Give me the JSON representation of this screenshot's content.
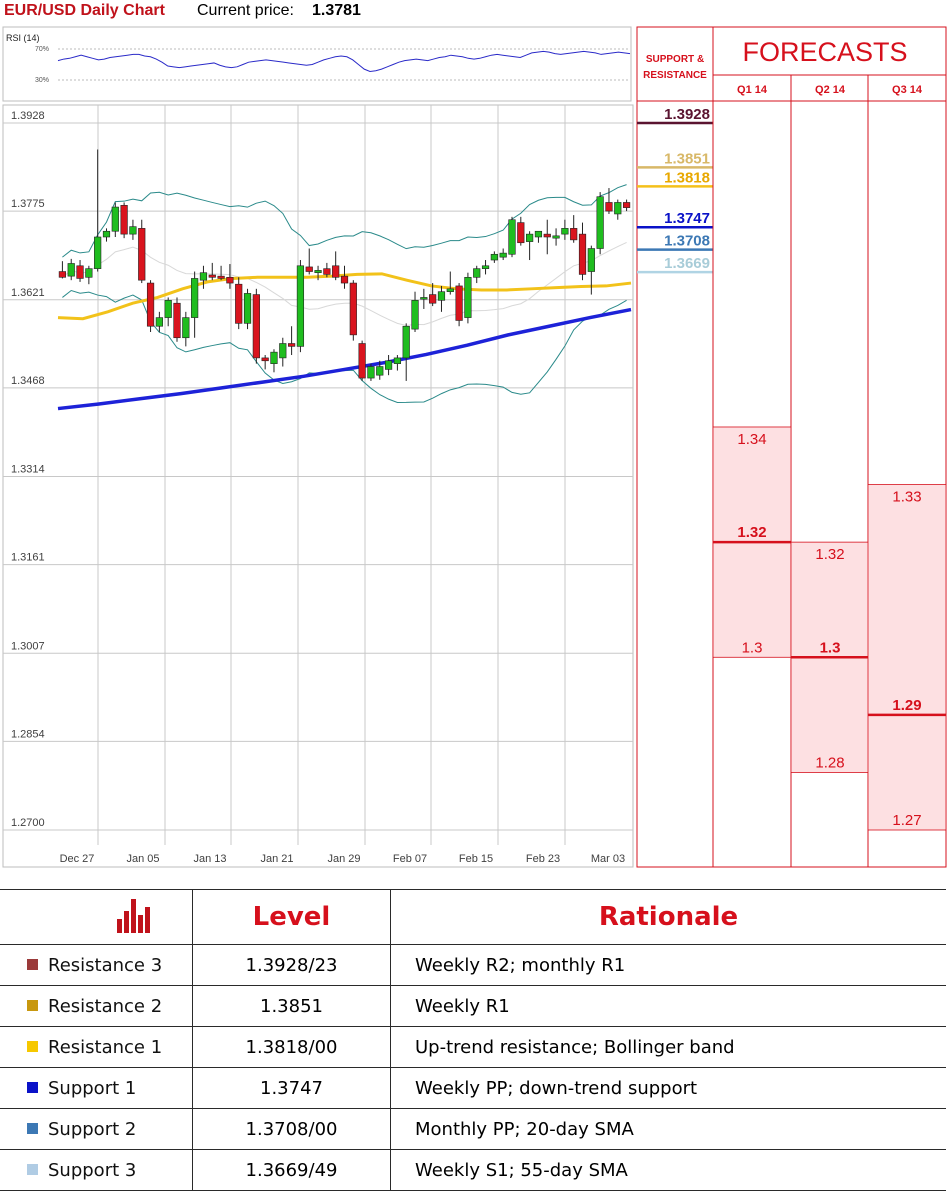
{
  "header": {
    "title": "EUR/USD Daily Chart",
    "current_price_label": "Current price:",
    "current_price": "1.3781"
  },
  "rsi": {
    "label": "RSI (14)",
    "levels": [
      "70%",
      "30%"
    ],
    "values": [
      55,
      57,
      58,
      60,
      62,
      60,
      58,
      56,
      57,
      59,
      60,
      61,
      62,
      63,
      63,
      61,
      60,
      57,
      53,
      48,
      47,
      46,
      47,
      48,
      49,
      50,
      51,
      52,
      49,
      47,
      46,
      47,
      50,
      53,
      54,
      55,
      56,
      55,
      54,
      53,
      52,
      51,
      50,
      49,
      50,
      53,
      56,
      58,
      60,
      61,
      60,
      56,
      50,
      44,
      41,
      42,
      44,
      47,
      50,
      53,
      55,
      56,
      57,
      56,
      55,
      57,
      59,
      60,
      62,
      61,
      60,
      58,
      57,
      58,
      60,
      62,
      63,
      62,
      61,
      60,
      59,
      62,
      65,
      66,
      67,
      66,
      64,
      63,
      64,
      65,
      66,
      67,
      66,
      65,
      63,
      64,
      65,
      66,
      65,
      64
    ]
  },
  "chart_data": {
    "type": "candlestick",
    "title": "EUR/USD Daily Chart",
    "y_tick_labels": [
      "1.3928",
      "1.3775",
      "1.3621",
      "1.3468",
      "1.3314",
      "1.3161",
      "1.3007",
      "1.2854",
      "1.2700"
    ],
    "ylim": [
      1.27,
      1.3928
    ],
    "x_tick_labels": [
      "Dec 27",
      "Jan 05",
      "Jan 13",
      "Jan 21",
      "Jan 29",
      "Feb 07",
      "Feb 15",
      "Feb 23",
      "Mar 03"
    ],
    "grid": true,
    "colors": {
      "up": "#1fbd1f",
      "down": "#d9141e",
      "sma55": "#f2c21a",
      "sma200": "#1d22d8",
      "bollinger": "#2a8a8a",
      "sma20": "#d8d8d8"
    },
    "candles": [
      {
        "o": 1.367,
        "h": 1.3688,
        "l": 1.3658,
        "c": 1.366
      },
      {
        "o": 1.3662,
        "h": 1.3692,
        "l": 1.3655,
        "c": 1.3684
      },
      {
        "o": 1.368,
        "h": 1.369,
        "l": 1.3652,
        "c": 1.3658
      },
      {
        "o": 1.366,
        "h": 1.368,
        "l": 1.3648,
        "c": 1.3675
      },
      {
        "o": 1.3675,
        "h": 1.3882,
        "l": 1.367,
        "c": 1.373
      },
      {
        "o": 1.373,
        "h": 1.3745,
        "l": 1.3722,
        "c": 1.374
      },
      {
        "o": 1.374,
        "h": 1.379,
        "l": 1.373,
        "c": 1.3782
      },
      {
        "o": 1.3785,
        "h": 1.379,
        "l": 1.3728,
        "c": 1.3735
      },
      {
        "o": 1.3735,
        "h": 1.376,
        "l": 1.3725,
        "c": 1.3748
      },
      {
        "o": 1.3745,
        "h": 1.376,
        "l": 1.365,
        "c": 1.3655
      },
      {
        "o": 1.365,
        "h": 1.3655,
        "l": 1.3565,
        "c": 1.3575
      },
      {
        "o": 1.3575,
        "h": 1.36,
        "l": 1.3565,
        "c": 1.359
      },
      {
        "o": 1.359,
        "h": 1.3625,
        "l": 1.3575,
        "c": 1.362
      },
      {
        "o": 1.3615,
        "h": 1.3625,
        "l": 1.3548,
        "c": 1.3555
      },
      {
        "o": 1.3555,
        "h": 1.36,
        "l": 1.354,
        "c": 1.359
      },
      {
        "o": 1.359,
        "h": 1.367,
        "l": 1.3555,
        "c": 1.3658
      },
      {
        "o": 1.3655,
        "h": 1.368,
        "l": 1.364,
        "c": 1.3668
      },
      {
        "o": 1.3664,
        "h": 1.3685,
        "l": 1.3655,
        "c": 1.366
      },
      {
        "o": 1.3662,
        "h": 1.368,
        "l": 1.3655,
        "c": 1.3658
      },
      {
        "o": 1.366,
        "h": 1.3683,
        "l": 1.364,
        "c": 1.365
      },
      {
        "o": 1.3648,
        "h": 1.366,
        "l": 1.357,
        "c": 1.358
      },
      {
        "o": 1.358,
        "h": 1.364,
        "l": 1.357,
        "c": 1.3632
      },
      {
        "o": 1.363,
        "h": 1.364,
        "l": 1.351,
        "c": 1.352
      },
      {
        "o": 1.352,
        "h": 1.3525,
        "l": 1.35,
        "c": 1.3515
      },
      {
        "o": 1.351,
        "h": 1.3535,
        "l": 1.3495,
        "c": 1.353
      },
      {
        "o": 1.352,
        "h": 1.3555,
        "l": 1.3505,
        "c": 1.3545
      },
      {
        "o": 1.3545,
        "h": 1.3575,
        "l": 1.3525,
        "c": 1.354
      },
      {
        "o": 1.354,
        "h": 1.369,
        "l": 1.353,
        "c": 1.368
      },
      {
        "o": 1.3678,
        "h": 1.371,
        "l": 1.3665,
        "c": 1.367
      },
      {
        "o": 1.3668,
        "h": 1.368,
        "l": 1.3655,
        "c": 1.3672
      },
      {
        "o": 1.3675,
        "h": 1.3685,
        "l": 1.366,
        "c": 1.3665
      },
      {
        "o": 1.368,
        "h": 1.3705,
        "l": 1.3655,
        "c": 1.366
      },
      {
        "o": 1.3662,
        "h": 1.368,
        "l": 1.364,
        "c": 1.365
      },
      {
        "o": 1.365,
        "h": 1.3655,
        "l": 1.355,
        "c": 1.356
      },
      {
        "o": 1.3545,
        "h": 1.355,
        "l": 1.348,
        "c": 1.3485
      },
      {
        "o": 1.3485,
        "h": 1.351,
        "l": 1.348,
        "c": 1.3505
      },
      {
        "o": 1.349,
        "h": 1.3515,
        "l": 1.3482,
        "c": 1.3505
      },
      {
        "o": 1.35,
        "h": 1.3525,
        "l": 1.349,
        "c": 1.3515
      },
      {
        "o": 1.351,
        "h": 1.3525,
        "l": 1.3498,
        "c": 1.352
      },
      {
        "o": 1.352,
        "h": 1.358,
        "l": 1.348,
        "c": 1.3575
      },
      {
        "o": 1.357,
        "h": 1.3635,
        "l": 1.3565,
        "c": 1.362
      },
      {
        "o": 1.3622,
        "h": 1.364,
        "l": 1.3605,
        "c": 1.3625
      },
      {
        "o": 1.363,
        "h": 1.365,
        "l": 1.361,
        "c": 1.3615
      },
      {
        "o": 1.362,
        "h": 1.3645,
        "l": 1.36,
        "c": 1.3635
      },
      {
        "o": 1.3635,
        "h": 1.367,
        "l": 1.363,
        "c": 1.364
      },
      {
        "o": 1.3645,
        "h": 1.365,
        "l": 1.3575,
        "c": 1.3585
      },
      {
        "o": 1.359,
        "h": 1.3668,
        "l": 1.358,
        "c": 1.366
      },
      {
        "o": 1.366,
        "h": 1.368,
        "l": 1.365,
        "c": 1.3675
      },
      {
        "o": 1.3675,
        "h": 1.369,
        "l": 1.3665,
        "c": 1.368
      },
      {
        "o": 1.369,
        "h": 1.3705,
        "l": 1.3685,
        "c": 1.37
      },
      {
        "o": 1.3695,
        "h": 1.371,
        "l": 1.369,
        "c": 1.3702
      },
      {
        "o": 1.37,
        "h": 1.3765,
        "l": 1.3695,
        "c": 1.376
      },
      {
        "o": 1.3755,
        "h": 1.3765,
        "l": 1.3715,
        "c": 1.372
      },
      {
        "o": 1.3722,
        "h": 1.374,
        "l": 1.369,
        "c": 1.3735
      },
      {
        "o": 1.373,
        "h": 1.374,
        "l": 1.372,
        "c": 1.374
      },
      {
        "o": 1.3735,
        "h": 1.376,
        "l": 1.37,
        "c": 1.373
      },
      {
        "o": 1.3728,
        "h": 1.3745,
        "l": 1.3715,
        "c": 1.3732
      },
      {
        "o": 1.3735,
        "h": 1.376,
        "l": 1.3725,
        "c": 1.3745
      },
      {
        "o": 1.3745,
        "h": 1.3768,
        "l": 1.372,
        "c": 1.3725
      },
      {
        "o": 1.3735,
        "h": 1.3755,
        "l": 1.3655,
        "c": 1.3665
      },
      {
        "o": 1.367,
        "h": 1.3715,
        "l": 1.363,
        "c": 1.371
      },
      {
        "o": 1.371,
        "h": 1.3808,
        "l": 1.37,
        "c": 1.38
      },
      {
        "o": 1.379,
        "h": 1.3815,
        "l": 1.377,
        "c": 1.3775
      },
      {
        "o": 1.377,
        "h": 1.3795,
        "l": 1.376,
        "c": 1.379
      },
      {
        "o": 1.379,
        "h": 1.3795,
        "l": 1.3775,
        "c": 1.3781
      }
    ],
    "sma200": [
      1.3432,
      1.344,
      1.3449,
      1.3458,
      1.3468,
      1.3478,
      1.3488,
      1.35,
      1.3512,
      1.3526,
      1.3542,
      1.356,
      1.3575,
      1.359,
      1.3604
    ],
    "sma55": [
      1.359,
      1.3588,
      1.36,
      1.3615,
      1.3625,
      1.364,
      1.3652,
      1.3658,
      1.366,
      1.366,
      1.366,
      1.3662,
      1.3665,
      1.3666,
      1.3655,
      1.3645,
      1.364,
      1.3638,
      1.3638,
      1.364,
      1.3642,
      1.3644,
      1.3645,
      1.365
    ]
  },
  "levels_bar": {
    "title": "SUPPORT & RESISTANCE",
    "items": [
      {
        "label": "1.3928",
        "value": 1.3928,
        "color": "#5a1430",
        "text_color": "#5a1430"
      },
      {
        "label": "1.3851",
        "value": 1.3851,
        "color": "#d8b868",
        "text_color": "#d8b868"
      },
      {
        "label": "1.3818",
        "value": 1.3818,
        "color": "#f4c01a",
        "text_color": "#e8a800"
      },
      {
        "label": "1.3747",
        "value": 1.3747,
        "color": "#0a12c8",
        "text_color": "#0a12c8"
      },
      {
        "label": "1.3708",
        "value": 1.3708,
        "color": "#3c78b4",
        "text_color": "#3c78b4"
      },
      {
        "label": "1.3669",
        "value": 1.3669,
        "color": "#b0d4e4",
        "text_color": "#a8ccd8"
      }
    ]
  },
  "forecasts": {
    "title": "FORECASTS",
    "columns": [
      {
        "quarter": "Q1 14",
        "high": "1.34",
        "mid": "1.32",
        "low": "1.3",
        "high_v": 1.34,
        "mid_v": 1.32,
        "low_v": 1.3
      },
      {
        "quarter": "Q2 14",
        "high": "1.32",
        "mid": "1.3",
        "low": "1.28",
        "high_v": 1.32,
        "mid_v": 1.3,
        "low_v": 1.28
      },
      {
        "quarter": "Q3 14",
        "high": "1.33",
        "mid": "1.29",
        "low": "1.27",
        "high_v": 1.33,
        "mid_v": 1.29,
        "low_v": 1.27
      }
    ]
  },
  "table": {
    "headers": {
      "level": "Level",
      "rationale": "Rationale"
    },
    "rows": [
      {
        "name": "Resistance 3",
        "level": "1.3928/23",
        "rationale": "Weekly R2; monthly R1",
        "color": "#9b3a3a"
      },
      {
        "name": "Resistance 2",
        "level": "1.3851",
        "rationale": "Weekly R1",
        "color": "#c8980f"
      },
      {
        "name": "Resistance 1",
        "level": "1.3818/00",
        "rationale": "Up-trend resistance; Bollinger band",
        "color": "#f6c800"
      },
      {
        "name": "Support 1",
        "level": "1.3747",
        "rationale": "Weekly PP; down-trend support",
        "color": "#0a12c8"
      },
      {
        "name": "Support 2",
        "level": "1.3708/00",
        "rationale": "Monthly PP; 20-day SMA",
        "color": "#3c78b4"
      },
      {
        "name": "Support 3",
        "level": "1.3669/49",
        "rationale": "Weekly S1; 55-day SMA",
        "color": "#b0cce4"
      }
    ]
  }
}
